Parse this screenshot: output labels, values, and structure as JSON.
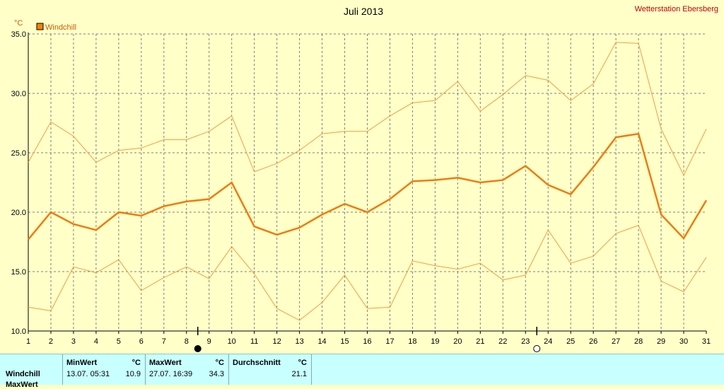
{
  "station": "Wetterstation Ebersberg",
  "chart_data": {
    "type": "line",
    "title": "Juli 2013",
    "unit": "°C",
    "legend": [
      "Windchill"
    ],
    "legend_color": "#ff8000",
    "line_color": "#ee7c0e",
    "thin_color": "#f0a040",
    "ylim": [
      10.0,
      35.0
    ],
    "yticks": [
      "10.0",
      "15.0",
      "20.0",
      "25.0",
      "30.0",
      "35.0"
    ],
    "x": [
      1,
      2,
      3,
      4,
      5,
      6,
      7,
      8,
      9,
      10,
      11,
      12,
      13,
      14,
      15,
      16,
      17,
      18,
      19,
      20,
      21,
      22,
      23,
      24,
      25,
      26,
      27,
      28,
      29,
      30,
      31
    ],
    "series": [
      {
        "name": "Windchill",
        "role": "max",
        "values": [
          24.2,
          27.6,
          26.4,
          24.2,
          25.2,
          25.4,
          26.1,
          26.1,
          26.8,
          28.1,
          23.4,
          24.1,
          25.2,
          26.6,
          26.8,
          26.8,
          28.1,
          29.2,
          29.4,
          31.0,
          28.5,
          29.9,
          31.5,
          31.1,
          29.4,
          30.8,
          34.3,
          34.2,
          27.0,
          23.1,
          27.0
        ]
      },
      {
        "name": "Windchill",
        "role": "avg",
        "values": [
          17.7,
          20.0,
          19.0,
          18.5,
          20.0,
          19.7,
          20.5,
          20.9,
          21.1,
          22.5,
          18.8,
          18.1,
          18.7,
          19.8,
          20.7,
          20.0,
          21.1,
          22.6,
          22.7,
          22.9,
          22.5,
          22.7,
          23.9,
          22.3,
          21.5,
          23.8,
          26.3,
          26.6,
          19.8,
          17.8,
          21.0
        ]
      },
      {
        "name": "Windchill",
        "role": "min",
        "values": [
          12.0,
          11.7,
          15.4,
          14.9,
          16.0,
          13.4,
          14.5,
          15.4,
          14.4,
          17.1,
          14.8,
          11.9,
          10.9,
          12.4,
          14.7,
          11.9,
          12.0,
          15.9,
          15.5,
          15.2,
          15.7,
          14.3,
          14.7,
          18.5,
          15.7,
          16.3,
          18.2,
          18.9,
          14.2,
          13.3,
          16.2
        ]
      }
    ],
    "moon_markers": [
      {
        "day": 8,
        "phase": "new-moon"
      },
      {
        "day": 23,
        "phase": "full-moon"
      }
    ],
    "grid": true
  },
  "stats": {
    "headers": {
      "min": "MinWert",
      "max": "MaxWert",
      "avg": "Durchschnitt",
      "unit": "°C"
    },
    "rows": [
      {
        "label": "Windchill",
        "min_time": "13.07.  05:31",
        "min_value": "10.9",
        "max_time": "27.07.  16:39",
        "max_value": "34.3",
        "avg_value": "21.1"
      },
      {
        "label": "MaxWert"
      }
    ]
  }
}
